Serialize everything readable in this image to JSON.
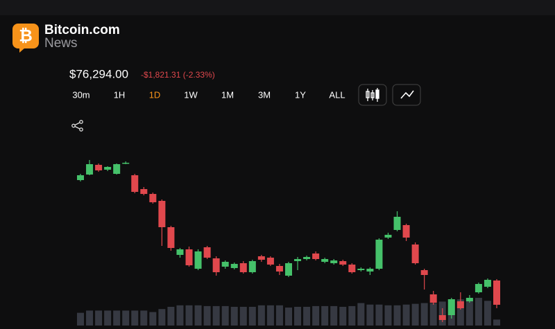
{
  "header": {
    "logo": "₿",
    "brand": "Bitcoin.com",
    "sub": "News"
  },
  "price": "$76,294.00",
  "change": "-$1,821.31 (-2.33%)",
  "ranges": [
    "30m",
    "1H",
    "1D",
    "1W",
    "1M",
    "3M",
    "1Y",
    "ALL"
  ],
  "active_range": "1D",
  "chart_data": {
    "type": "candlestick",
    "open": [
      78094,
      78174,
      78314,
      78244,
      78184,
      78334,
      78164,
      77964,
      77894,
      77794,
      77414,
      77014,
      77094,
      76814,
      77124,
      76964,
      76844,
      76824,
      76894,
      76764,
      76994,
      76974,
      76854,
      76714,
      76924,
      76954,
      77034,
      76914,
      76894,
      76924,
      76874,
      76794,
      76774,
      76814,
      77264,
      77374,
      77444,
      77164,
      76794,
      76444,
      76144,
      76144,
      76344,
      76344,
      76474,
      76554,
      76644
    ],
    "high": [
      78184,
      78384,
      78334,
      78294,
      78334,
      78364,
      78184,
      77994,
      77914,
      77814,
      77434,
      77114,
      77134,
      77094,
      77144,
      76994,
      76934,
      76904,
      76924,
      76944,
      77014,
      76994,
      76884,
      76914,
      76984,
      77004,
      77064,
      76974,
      76954,
      76944,
      76894,
      76834,
      76834,
      77254,
      77334,
      77644,
      77464,
      77194,
      76814,
      76494,
      76244,
      76394,
      76474,
      76434,
      76614,
      76674,
      76664
    ],
    "low": [
      78074,
      78164,
      78214,
      78224,
      78174,
      78324,
      77904,
      77874,
      77754,
      77144,
      77074,
      76974,
      76844,
      76794,
      76954,
      76714,
      76814,
      76804,
      76744,
      76744,
      76914,
      76854,
      76724,
      76694,
      76794,
      76934,
      76934,
      76894,
      76874,
      76854,
      76744,
      76774,
      76724,
      76794,
      77244,
      77354,
      77214,
      76874,
      76514,
      76294,
      76044,
      76094,
      76224,
      76324,
      76454,
      76534,
      76244
    ],
    "close": [
      78164,
      78324,
      78234,
      78284,
      78324,
      78344,
      77924,
      77894,
      77774,
      77414,
      77114,
      77094,
      76864,
      77064,
      76974,
      76764,
      76914,
      76884,
      76764,
      76924,
      76944,
      76874,
      76774,
      76894,
      76954,
      76984,
      76954,
      76954,
      76934,
      76874,
      76764,
      76814,
      76814,
      77234,
      77304,
      77564,
      77264,
      76894,
      76724,
      76324,
      76074,
      76374,
      76244,
      76394,
      76594,
      76654,
      76294
    ],
    "volume": [
      17,
      20,
      20,
      20,
      20,
      20,
      20,
      20,
      18,
      22,
      25,
      27,
      27,
      27,
      26,
      26,
      26,
      25,
      25,
      25,
      27,
      27,
      27,
      24,
      25,
      25,
      26,
      26,
      26,
      25,
      26,
      30,
      28,
      28,
      27,
      27,
      28,
      29,
      30,
      30,
      32,
      35,
      35,
      36,
      37,
      33,
      8
    ],
    "up_color": "#45c16a",
    "down_color": "#e0484d",
    "volume_color": "#363942"
  }
}
